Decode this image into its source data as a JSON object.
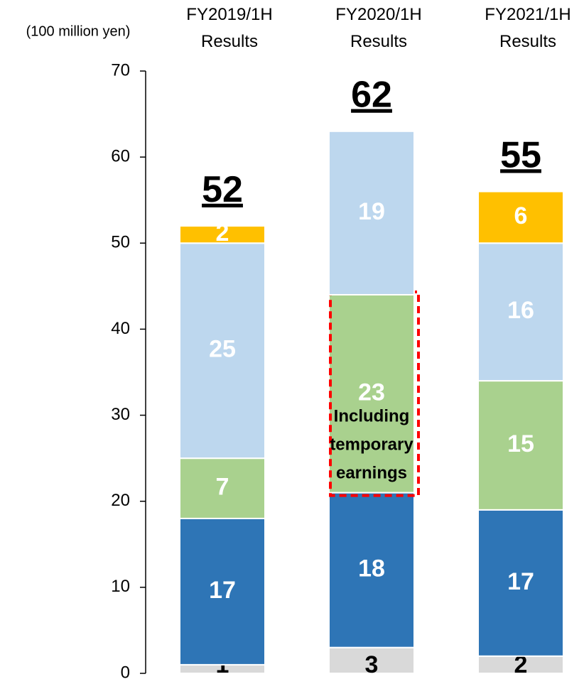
{
  "chart_data": {
    "type": "stacked_bar",
    "unit_label": "(100 million yen)",
    "categories": [
      "FY2019/1H Results",
      "FY2020/1H Results",
      "FY2021/1H Results"
    ],
    "series": [
      {
        "color": "#d9d9d9",
        "values": [
          1,
          3,
          2
        ]
      },
      {
        "color": "#2e75b6",
        "values": [
          17,
          18,
          17
        ]
      },
      {
        "color": "#a9d18e",
        "values": [
          7,
          23,
          15
        ]
      },
      {
        "color": "#bdd7ee",
        "values": [
          25,
          19,
          16
        ]
      },
      {
        "color": "#ffc000",
        "values": [
          2,
          null,
          6
        ]
      }
    ],
    "totals": [
      52,
      62,
      55
    ],
    "annotation": {
      "text": "Including temporary earnings",
      "category": 1,
      "series": 2,
      "color": "#ff0000"
    },
    "ylim": [
      0,
      70
    ],
    "yticks": [
      0,
      10,
      20,
      30,
      40,
      50,
      60,
      70
    ]
  }
}
